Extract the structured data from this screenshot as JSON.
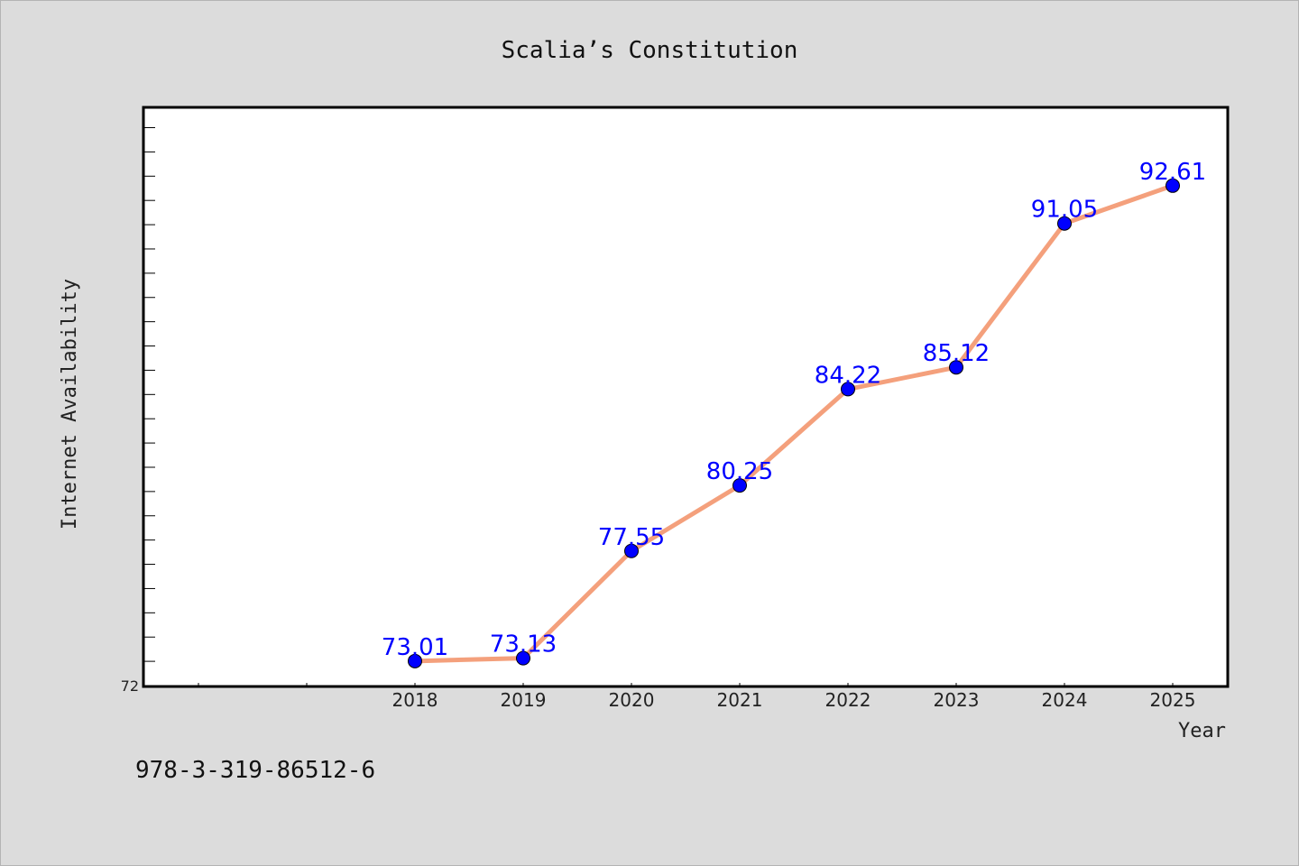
{
  "chart_data": {
    "type": "line",
    "title": "Scalia’s Constitution",
    "xlabel": "Year",
    "ylabel": "Internet Availability",
    "x": [
      "2018",
      "2019",
      "2020",
      "2021",
      "2022",
      "2023",
      "2024",
      "2025"
    ],
    "series": [
      {
        "values": [
          73.01,
          73.13,
          77.55,
          80.25,
          84.22,
          85.12,
          91.05,
          92.61
        ]
      }
    ],
    "data_labels": [
      "73.01",
      "73.13",
      "77.55",
      "80.25",
      "84.22",
      "85.12",
      "91.05",
      "92.61"
    ],
    "y_tick_labels": [
      "72"
    ],
    "ylim": [
      72,
      96
    ],
    "grid": false,
    "line_color": "#f4a07c",
    "marker_color": "#0000ff",
    "label_color": "#0000ff"
  },
  "footer": {
    "isbn": "978-3-319-86512-6"
  }
}
